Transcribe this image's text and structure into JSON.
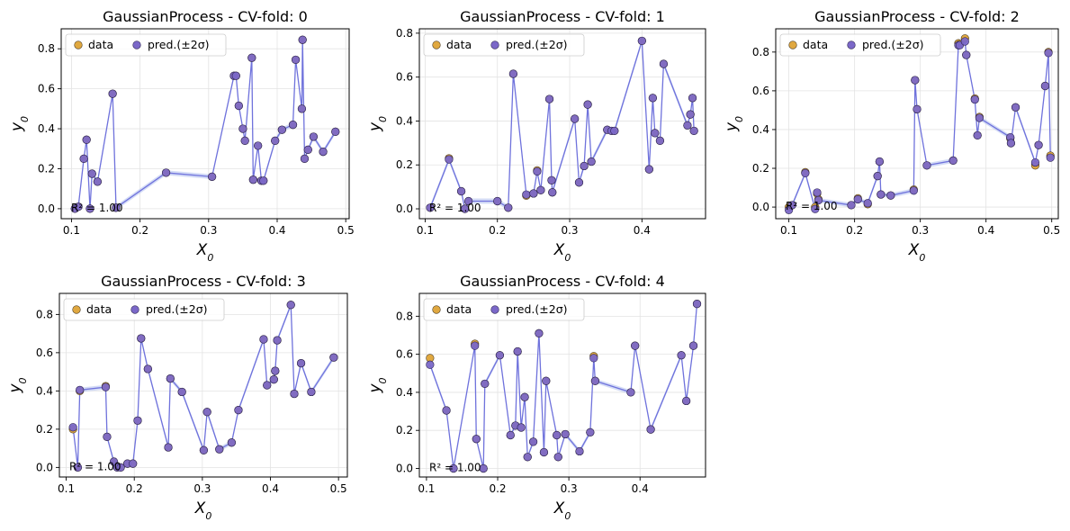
{
  "colors": {
    "data": "#e0a840",
    "pred": "#7b68c8",
    "line": "#6f72dc",
    "band": "#b8c4f0",
    "grid": "#e3e3e3"
  },
  "legend": {
    "data_label": "data",
    "pred_label": "pred.(±2σ)"
  },
  "chart_data": [
    {
      "type": "scatter",
      "title": "GaussianProcess - CV-fold: 0",
      "xlabel": "X_0",
      "ylabel": "y_0",
      "xlim": [
        0.085,
        0.505
      ],
      "ylim": [
        -0.05,
        0.9
      ],
      "xticks": [
        0.1,
        0.2,
        0.3,
        0.4,
        0.5
      ],
      "xtick_labels": [
        "0.1",
        "0.2",
        "0.3",
        "0.4",
        "0.5"
      ],
      "yticks": [
        0.0,
        0.2,
        0.4,
        0.6,
        0.8
      ],
      "ytick_labels": [
        "0.0",
        "0.2",
        "0.4",
        "0.6",
        "0.8"
      ],
      "annotation": "R² = 1.00",
      "x": [
        0.105,
        0.11,
        0.118,
        0.122,
        0.127,
        0.13,
        0.138,
        0.16,
        0.165,
        0.238,
        0.305,
        0.337,
        0.34,
        0.344,
        0.35,
        0.353,
        0.363,
        0.365,
        0.372,
        0.377,
        0.38,
        0.397,
        0.407,
        0.423,
        0.427,
        0.436,
        0.437,
        0.44,
        0.445,
        0.453,
        0.467,
        0.485
      ],
      "y": [
        0.0,
        0.01,
        0.25,
        0.345,
        0.0,
        0.175,
        0.135,
        0.575,
        0.005,
        0.18,
        0.16,
        0.665,
        0.665,
        0.515,
        0.4,
        0.34,
        0.755,
        0.145,
        0.315,
        0.14,
        0.14,
        0.34,
        0.395,
        0.42,
        0.745,
        0.5,
        0.845,
        0.25,
        0.295,
        0.36,
        0.285,
        0.385
      ],
      "pred": [
        0.0,
        0.01,
        0.25,
        0.345,
        0.0,
        0.175,
        0.135,
        0.575,
        0.005,
        0.18,
        0.16,
        0.665,
        0.665,
        0.515,
        0.4,
        0.34,
        0.755,
        0.145,
        0.315,
        0.14,
        0.14,
        0.34,
        0.395,
        0.42,
        0.745,
        0.5,
        0.845,
        0.25,
        0.295,
        0.36,
        0.285,
        0.385
      ]
    },
    {
      "type": "scatter",
      "title": "GaussianProcess - CV-fold: 1",
      "xlabel": "X_0",
      "ylabel": "y_0",
      "xlim": [
        0.092,
        0.488
      ],
      "ylim": [
        -0.045,
        0.82
      ],
      "xticks": [
        0.1,
        0.2,
        0.3,
        0.4
      ],
      "xtick_labels": [
        "0.1",
        "0.2",
        "0.3",
        "0.4"
      ],
      "yticks": [
        0.0,
        0.2,
        0.4,
        0.6,
        0.8
      ],
      "ytick_labels": [
        "0.0",
        "0.2",
        "0.4",
        "0.6",
        "0.8"
      ],
      "annotation": "R² = 1.00",
      "x": [
        0.107,
        0.133,
        0.15,
        0.155,
        0.16,
        0.2,
        0.215,
        0.222,
        0.24,
        0.25,
        0.255,
        0.26,
        0.272,
        0.275,
        0.276,
        0.307,
        0.313,
        0.32,
        0.325,
        0.33,
        0.352,
        0.358,
        0.362,
        0.4,
        0.41,
        0.415,
        0.418,
        0.425,
        0.43,
        0.463,
        0.467,
        0.47,
        0.472
      ],
      "y": [
        0.005,
        0.23,
        0.08,
        0.0,
        0.035,
        0.035,
        0.005,
        0.615,
        0.06,
        0.07,
        0.175,
        0.085,
        0.5,
        0.13,
        0.075,
        0.41,
        0.12,
        0.195,
        0.475,
        0.215,
        0.36,
        0.355,
        0.355,
        0.765,
        0.18,
        0.505,
        0.345,
        0.31,
        0.66,
        0.38,
        0.43,
        0.505,
        0.355
      ],
      "pred": [
        0.005,
        0.225,
        0.08,
        0.0,
        0.035,
        0.035,
        0.005,
        0.615,
        0.065,
        0.07,
        0.17,
        0.085,
        0.5,
        0.13,
        0.075,
        0.41,
        0.12,
        0.195,
        0.475,
        0.215,
        0.36,
        0.355,
        0.355,
        0.765,
        0.18,
        0.505,
        0.345,
        0.31,
        0.66,
        0.38,
        0.43,
        0.505,
        0.355
      ]
    },
    {
      "type": "scatter",
      "title": "GaussianProcess - CV-fold: 2",
      "xlabel": "X_0",
      "ylabel": "y_0",
      "xlim": [
        0.08,
        0.51
      ],
      "ylim": [
        -0.06,
        0.92
      ],
      "xticks": [
        0.1,
        0.2,
        0.3,
        0.4,
        0.5
      ],
      "xtick_labels": [
        "0.1",
        "0.2",
        "0.3",
        "0.4",
        "0.5"
      ],
      "yticks": [
        0.0,
        0.2,
        0.4,
        0.6,
        0.8
      ],
      "ytick_labels": [
        "0.0",
        "0.2",
        "0.4",
        "0.6",
        "0.8"
      ],
      "annotation": "R² = 1.00",
      "x": [
        0.1,
        0.105,
        0.125,
        0.14,
        0.143,
        0.145,
        0.195,
        0.205,
        0.22,
        0.235,
        0.238,
        0.24,
        0.255,
        0.29,
        0.292,
        0.295,
        0.31,
        0.35,
        0.358,
        0.36,
        0.368,
        0.37,
        0.383,
        0.387,
        0.39,
        0.437,
        0.438,
        0.445,
        0.475,
        0.48,
        0.49,
        0.495,
        0.498
      ],
      "y": [
        0.0,
        0.01,
        0.18,
        0.0,
        0.07,
        0.04,
        0.01,
        0.045,
        0.015,
        0.16,
        0.235,
        0.065,
        0.06,
        0.09,
        0.655,
        0.505,
        0.215,
        0.24,
        0.845,
        0.84,
        0.87,
        0.785,
        0.56,
        0.37,
        0.465,
        0.355,
        0.33,
        0.515,
        0.215,
        0.32,
        0.625,
        0.8,
        0.265
      ],
      "pred": [
        -0.015,
        0.01,
        0.175,
        -0.01,
        0.075,
        0.035,
        0.01,
        0.04,
        0.02,
        0.16,
        0.235,
        0.065,
        0.06,
        0.085,
        0.655,
        0.505,
        0.215,
        0.24,
        0.835,
        0.835,
        0.855,
        0.785,
        0.555,
        0.37,
        0.46,
        0.36,
        0.33,
        0.515,
        0.23,
        0.32,
        0.625,
        0.795,
        0.255
      ]
    },
    {
      "type": "scatter",
      "title": "GaussianProcess - CV-fold: 3",
      "xlabel": "X_0",
      "ylabel": "y_0",
      "xlim": [
        0.09,
        0.513
      ],
      "ylim": [
        -0.05,
        0.91
      ],
      "xticks": [
        0.1,
        0.2,
        0.3,
        0.4,
        0.5
      ],
      "xtick_labels": [
        "0.1",
        "0.2",
        "0.3",
        "0.4",
        "0.5"
      ],
      "yticks": [
        0.0,
        0.2,
        0.4,
        0.6,
        0.8
      ],
      "ytick_labels": [
        "0.0",
        "0.2",
        "0.4",
        "0.6",
        "0.8"
      ],
      "annotation": "R² = 1.00",
      "x": [
        0.11,
        0.117,
        0.12,
        0.158,
        0.16,
        0.17,
        0.175,
        0.18,
        0.19,
        0.198,
        0.205,
        0.21,
        0.22,
        0.25,
        0.253,
        0.27,
        0.302,
        0.307,
        0.325,
        0.343,
        0.353,
        0.39,
        0.395,
        0.405,
        0.407,
        0.41,
        0.43,
        0.435,
        0.445,
        0.46,
        0.493
      ],
      "y": [
        0.2,
        0.0,
        0.4,
        0.425,
        0.16,
        0.03,
        0.0,
        0.0,
        0.02,
        0.02,
        0.245,
        0.675,
        0.515,
        0.105,
        0.465,
        0.395,
        0.09,
        0.29,
        0.095,
        0.13,
        0.3,
        0.67,
        0.43,
        0.46,
        0.505,
        0.665,
        0.85,
        0.385,
        0.545,
        0.395,
        0.575
      ],
      "pred": [
        0.21,
        0.0,
        0.405,
        0.42,
        0.16,
        0.03,
        0.0,
        0.0,
        0.02,
        0.02,
        0.245,
        0.675,
        0.515,
        0.105,
        0.465,
        0.395,
        0.09,
        0.29,
        0.095,
        0.13,
        0.3,
        0.67,
        0.43,
        0.46,
        0.505,
        0.665,
        0.85,
        0.385,
        0.545,
        0.395,
        0.575
      ]
    },
    {
      "type": "scatter",
      "title": "GaussianProcess - CV-fold: 4",
      "xlabel": "X_0",
      "ylabel": "y_0",
      "xlim": [
        0.09,
        0.492
      ],
      "ylim": [
        -0.045,
        0.92
      ],
      "xticks": [
        0.1,
        0.2,
        0.3,
        0.4
      ],
      "xtick_labels": [
        "0.1",
        "0.2",
        "0.3",
        "0.4"
      ],
      "yticks": [
        0.0,
        0.2,
        0.4,
        0.6,
        0.8
      ],
      "ytick_labels": [
        "0.0",
        "0.2",
        "0.4",
        "0.6",
        "0.8"
      ],
      "annotation": "R² = 1.00",
      "x": [
        0.105,
        0.128,
        0.138,
        0.168,
        0.17,
        0.18,
        0.182,
        0.203,
        0.218,
        0.225,
        0.228,
        0.233,
        0.238,
        0.242,
        0.25,
        0.258,
        0.265,
        0.268,
        0.283,
        0.285,
        0.295,
        0.315,
        0.33,
        0.335,
        0.337,
        0.387,
        0.393,
        0.415,
        0.458,
        0.465,
        0.475,
        0.48
      ],
      "y": [
        0.58,
        0.305,
        0.0,
        0.655,
        0.155,
        0.0,
        0.445,
        0.595,
        0.175,
        0.225,
        0.615,
        0.215,
        0.375,
        0.06,
        0.14,
        0.71,
        0.085,
        0.46,
        0.175,
        0.06,
        0.18,
        0.09,
        0.19,
        0.59,
        0.46,
        0.4,
        0.645,
        0.205,
        0.595,
        0.355,
        0.645,
        0.865
      ],
      "pred": [
        0.545,
        0.305,
        0.0,
        0.645,
        0.155,
        0.0,
        0.445,
        0.595,
        0.175,
        0.225,
        0.615,
        0.215,
        0.375,
        0.06,
        0.14,
        0.71,
        0.085,
        0.46,
        0.175,
        0.06,
        0.18,
        0.09,
        0.19,
        0.58,
        0.46,
        0.4,
        0.645,
        0.205,
        0.595,
        0.355,
        0.645,
        0.865
      ]
    }
  ]
}
